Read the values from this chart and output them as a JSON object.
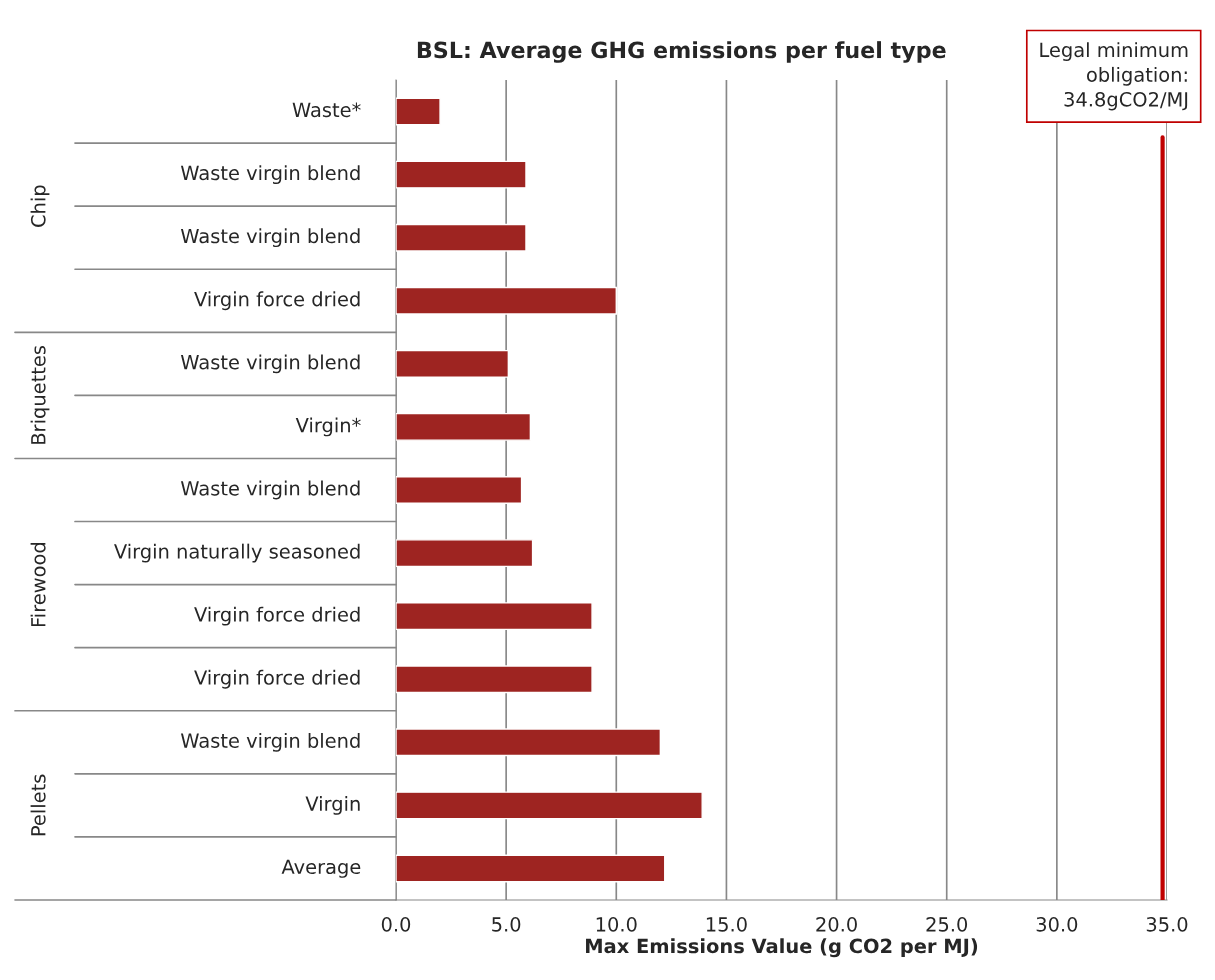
{
  "chart_data": {
    "type": "bar",
    "orientation": "horizontal",
    "title": "BSL: Average GHG emissions per fuel type",
    "xlabel": "Max Emissions Value (g CO2 per MJ)",
    "categories": [
      "Waste*",
      "Waste virgin blend",
      "Waste virgin blend",
      "Virgin force dried",
      "Waste virgin blend",
      "Virgin*",
      "Waste virgin blend",
      "Virgin naturally seasoned",
      "Virgin force dried",
      "Virgin force dried",
      "Waste virgin blend",
      "Virgin",
      "Average"
    ],
    "values": [
      2.0,
      5.9,
      5.9,
      10.0,
      5.1,
      6.1,
      5.7,
      6.2,
      8.9,
      8.9,
      12.0,
      13.9,
      12.2
    ],
    "color": "#9e2421",
    "xlim": [
      0,
      35
    ],
    "xticks": [
      {
        "value": 0,
        "label": "0.0"
      },
      {
        "value": 5,
        "label": "5.0"
      },
      {
        "value": 10,
        "label": "10.0"
      },
      {
        "value": 15,
        "label": "15.0"
      },
      {
        "value": 20,
        "label": "20.0"
      },
      {
        "value": 25,
        "label": "25.0"
      },
      {
        "value": 30,
        "label": "30.0"
      },
      {
        "value": 35,
        "label": "35.0"
      }
    ],
    "grid": "x",
    "ref_lines": [
      {
        "axis": "x",
        "value": 34.8,
        "label": "Legal minimum\nobligation:\n34.8gCO2/MJ",
        "color": "#c00000"
      }
    ],
    "annotations": [
      "Chip",
      "Briquettes",
      "Firewood",
      "Pellets"
    ]
  }
}
